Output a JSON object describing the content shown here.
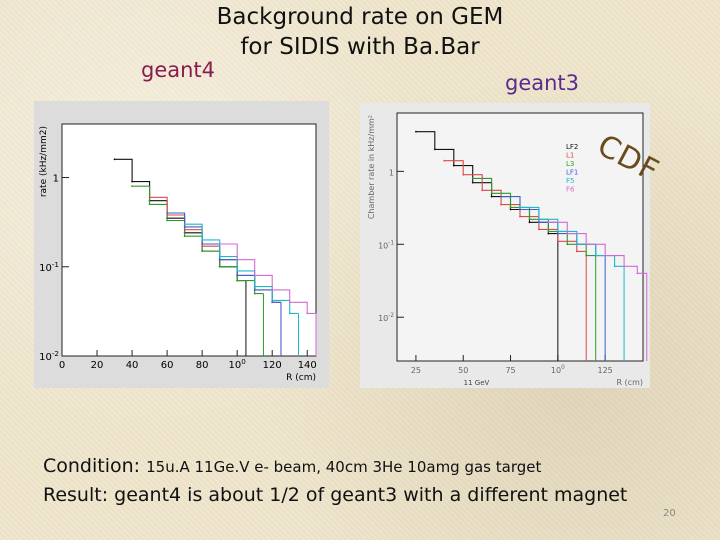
{
  "title_line1": "Background rate on GEM",
  "title_line2": "for SIDIS with Ba.Bar",
  "label_left": "geant4",
  "label_right": "geant3",
  "stamp": "CDF",
  "condition_label": "Condition:",
  "condition_text": "15u.A 11Ge.V e- beam, 40cm 3He 10amg gas target",
  "result_text": "Result: geant4 is about 1/2 of geant3 with a different magnet",
  "page_number": "20",
  "chart_data": [
    {
      "type": "line",
      "ylabel": "rate (kHz/mm2)",
      "xlabel": "R (cm)",
      "xlim": [
        0,
        145
      ],
      "ylim_log10": [
        -2,
        0.6
      ],
      "x_ticks": [
        "0",
        "20",
        "40",
        "60",
        "80",
        "100",
        "120",
        "140"
      ],
      "x_tick_values": [
        0,
        20,
        40,
        60,
        80,
        100,
        120,
        140
      ],
      "y_ticks": [
        "10-2",
        "10-1",
        "1"
      ],
      "y_tick_values": [
        0.01,
        0.1,
        1
      ],
      "series": [
        {
          "color": "#111111",
          "x": [
            30,
            40,
            50,
            60,
            70,
            80,
            90,
            100
          ],
          "y": [
            1.6,
            0.9,
            0.55,
            0.35,
            0.24,
            0.15,
            0.1,
            0.07
          ]
        },
        {
          "color": "#2e9a2e",
          "x": [
            40,
            50,
            60,
            70,
            80,
            90,
            100,
            110
          ],
          "y": [
            0.8,
            0.5,
            0.33,
            0.22,
            0.15,
            0.1,
            0.07,
            0.05
          ]
        },
        {
          "color": "#d94a4a",
          "x": [
            50,
            60,
            70,
            80,
            90,
            100,
            110,
            120
          ],
          "y": [
            0.6,
            0.38,
            0.26,
            0.17,
            0.12,
            0.08,
            0.055,
            0.04
          ]
        },
        {
          "color": "#3a5fd0",
          "x": [
            60,
            70,
            80,
            90,
            100,
            110,
            120
          ],
          "y": [
            0.4,
            0.28,
            0.18,
            0.12,
            0.08,
            0.055,
            0.04
          ]
        },
        {
          "color": "#1fb8c9",
          "x": [
            70,
            80,
            90,
            100,
            110,
            120,
            130
          ],
          "y": [
            0.3,
            0.2,
            0.13,
            0.09,
            0.06,
            0.042,
            0.03
          ]
        },
        {
          "color": "#d36ad3",
          "x": [
            90,
            100,
            110,
            120,
            130,
            140
          ],
          "y": [
            0.18,
            0.12,
            0.08,
            0.055,
            0.04,
            0.03
          ]
        }
      ]
    },
    {
      "type": "line",
      "ylabel": "Chamber rate in kHz/mm²",
      "xlabel": "R (cm)",
      "xlim": [
        15,
        145
      ],
      "ylim_log10": [
        -2.6,
        0.8
      ],
      "x_ticks": [
        "25",
        "50",
        "75",
        "100",
        "125"
      ],
      "x_tick_values": [
        25,
        50,
        75,
        100,
        125
      ],
      "y_ticks": [
        "10-2",
        "10-1",
        "1"
      ],
      "y_tick_values": [
        0.01,
        0.1,
        1
      ],
      "annotation": "11 GeV",
      "series": [
        {
          "name": "LF2",
          "color": "#111111",
          "x": [
            25,
            35,
            45,
            55,
            65,
            75,
            85,
            95
          ],
          "y": [
            3.5,
            2.0,
            1.2,
            0.7,
            0.45,
            0.3,
            0.2,
            0.14
          ]
        },
        {
          "name": "L1",
          "color": "#d94a4a",
          "x": [
            40,
            50,
            60,
            70,
            80,
            90,
            100,
            110
          ],
          "y": [
            1.4,
            0.9,
            0.55,
            0.35,
            0.24,
            0.16,
            0.11,
            0.08
          ]
        },
        {
          "name": "L3",
          "color": "#2e9a2e",
          "x": [
            55,
            65,
            75,
            85,
            95,
            105,
            115
          ],
          "y": [
            0.8,
            0.5,
            0.32,
            0.22,
            0.15,
            0.1,
            0.07
          ]
        },
        {
          "name": "LF1",
          "color": "#3a5fd0",
          "x": [
            70,
            80,
            90,
            100,
            110,
            120
          ],
          "y": [
            0.45,
            0.3,
            0.2,
            0.14,
            0.1,
            0.07
          ]
        },
        {
          "name": "F5",
          "color": "#1fb8c9",
          "x": [
            80,
            90,
            100,
            110,
            120,
            130
          ],
          "y": [
            0.32,
            0.22,
            0.15,
            0.1,
            0.07,
            0.05
          ]
        },
        {
          "name": "F6",
          "color": "#d36ad3",
          "x": [
            95,
            105,
            115,
            125,
            135,
            142
          ],
          "y": [
            0.2,
            0.14,
            0.1,
            0.07,
            0.05,
            0.04
          ]
        }
      ]
    }
  ]
}
